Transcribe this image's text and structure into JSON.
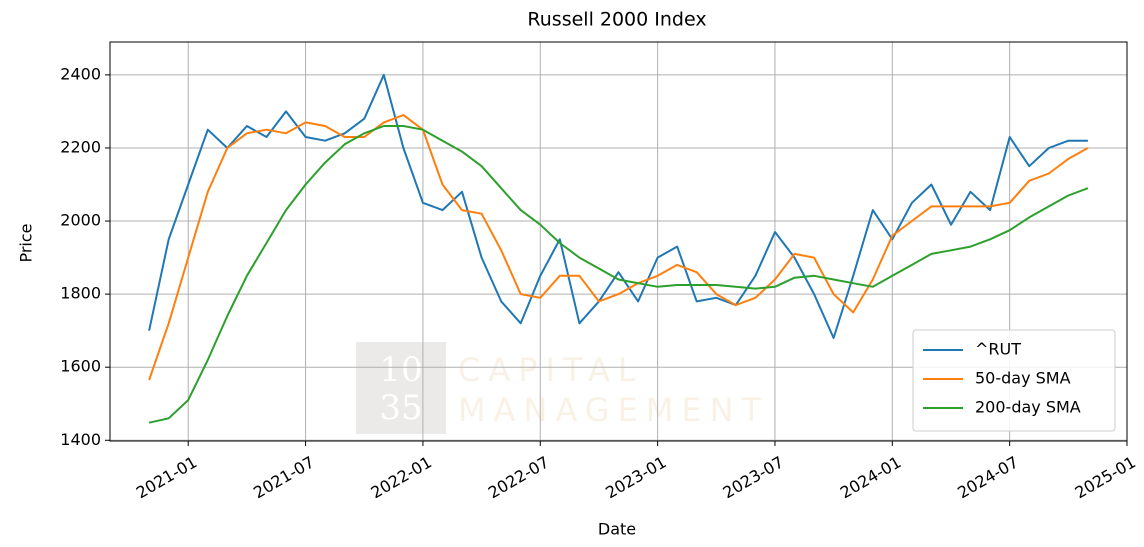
{
  "chart_data": {
    "type": "line",
    "title": "Russell 2000 Index",
    "x_label": "Date",
    "y_label": "Price",
    "x": [
      "2020-11",
      "2020-12",
      "2021-01",
      "2021-02",
      "2021-03",
      "2021-04",
      "2021-05",
      "2021-06",
      "2021-07",
      "2021-08",
      "2021-09",
      "2021-10",
      "2021-11",
      "2021-12",
      "2022-01",
      "2022-02",
      "2022-03",
      "2022-04",
      "2022-05",
      "2022-06",
      "2022-07",
      "2022-08",
      "2022-09",
      "2022-10",
      "2022-11",
      "2022-12",
      "2023-01",
      "2023-02",
      "2023-03",
      "2023-04",
      "2023-05",
      "2023-06",
      "2023-07",
      "2023-08",
      "2023-09",
      "2023-10",
      "2023-11",
      "2023-12",
      "2024-01",
      "2024-02",
      "2024-03",
      "2024-04",
      "2024-05",
      "2024-06",
      "2024-07",
      "2024-08",
      "2024-09",
      "2024-10",
      "2024-11"
    ],
    "series": [
      {
        "name": "^RUT",
        "color": "#1f77b4",
        "values": [
          1700,
          1950,
          2100,
          2250,
          2200,
          2260,
          2230,
          2300,
          2230,
          2220,
          2240,
          2280,
          2400,
          2200,
          2050,
          2030,
          2080,
          1900,
          1780,
          1720,
          1850,
          1950,
          1720,
          1780,
          1860,
          1780,
          1900,
          1930,
          1780,
          1790,
          1770,
          1850,
          1970,
          1900,
          1800,
          1680,
          1850,
          2030,
          1950,
          2050,
          2100,
          1990,
          2080,
          2030,
          2230,
          2150,
          2200,
          2220,
          2220
        ]
      },
      {
        "name": "50-day SMA",
        "color": "#ff7f0e",
        "values": [
          1565,
          1720,
          1900,
          2080,
          2200,
          2240,
          2250,
          2240,
          2270,
          2260,
          2230,
          2230,
          2270,
          2290,
          2250,
          2100,
          2030,
          2020,
          1920,
          1800,
          1790,
          1850,
          1850,
          1780,
          1800,
          1830,
          1850,
          1880,
          1860,
          1800,
          1770,
          1790,
          1840,
          1910,
          1900,
          1800,
          1750,
          1840,
          1960,
          2000,
          2040,
          2040,
          2040,
          2040,
          2050,
          2110,
          2130,
          2170,
          2200
        ]
      },
      {
        "name": "200-day SMA",
        "color": "#2ca02c",
        "values": [
          1448,
          1460,
          1510,
          1620,
          1740,
          1850,
          1940,
          2030,
          2100,
          2160,
          2210,
          2240,
          2260,
          2260,
          2250,
          2220,
          2190,
          2150,
          2090,
          2030,
          1990,
          1940,
          1900,
          1870,
          1840,
          1830,
          1820,
          1825,
          1825,
          1825,
          1820,
          1815,
          1820,
          1845,
          1850,
          1840,
          1830,
          1820,
          1850,
          1880,
          1910,
          1920,
          1930,
          1950,
          1975,
          2010,
          2040,
          2070,
          2090
        ]
      }
    ],
    "xlim": [
      "2020-09",
      "2025-01"
    ],
    "xticks": [
      "2021-01",
      "2021-07",
      "2022-01",
      "2022-07",
      "2023-01",
      "2023-07",
      "2024-01",
      "2024-07",
      "2025-01"
    ],
    "ylim": [
      1398,
      2490
    ],
    "yticks": [
      1400,
      1600,
      1800,
      2000,
      2200,
      2400
    ],
    "grid": true,
    "legend": "lower right",
    "watermark": {
      "logo_top": "10",
      "logo_bottom": "35",
      "line1": "CAPITAL",
      "line2": "MANAGEMENT"
    }
  }
}
